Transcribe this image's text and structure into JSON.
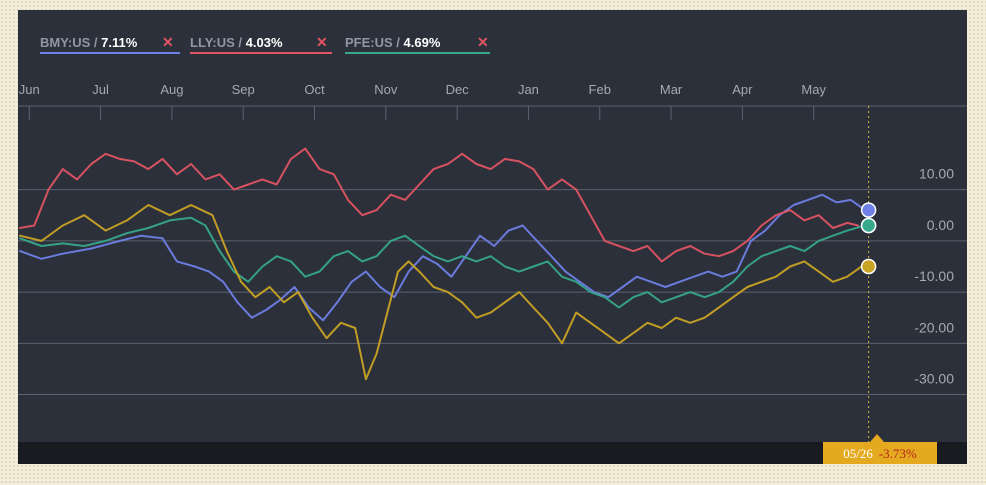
{
  "colors": {
    "background": "#2b303a",
    "grid": "#5b6170",
    "axis_text": "#a4a9b3",
    "cursor_line": "#d6b53a",
    "readout_bg": "#e5a91f",
    "readout_value": "#b3261e",
    "series_gold": "#c9a324"
  },
  "legend": [
    {
      "ticker": "BMY:US",
      "sep": " / ",
      "pct": "7.11%",
      "color": "#6f80e6",
      "close_icon": "close-x-icon"
    },
    {
      "ticker": "LLY:US",
      "sep": " / ",
      "pct": "4.03%",
      "color": "#e05462",
      "close_icon": "close-x-icon"
    },
    {
      "ticker": "PFE:US",
      "sep": " / ",
      "pct": "4.69%",
      "color": "#36a88b",
      "close_icon": "close-x-icon"
    }
  ],
  "readout": {
    "date": "05/26",
    "value": "-3.73%"
  },
  "chart_data": {
    "type": "line",
    "x_axis": {
      "position": "top",
      "labels": [
        "Jun",
        "Jul",
        "Aug",
        "Sep",
        "Oct",
        "Nov",
        "Dec",
        "Jan",
        "Feb",
        "Mar",
        "Apr",
        "May"
      ],
      "range": [
        0,
        12.2
      ],
      "cursor_x": 11.9
    },
    "y_axis": {
      "position": "right",
      "ticks": [
        10,
        0,
        -10,
        -20,
        -30
      ],
      "tick_labels": [
        "10.00",
        "0.00",
        "-10.00",
        "-20.00",
        "-30.00"
      ],
      "range": [
        -36,
        28
      ]
    },
    "grid": true,
    "legend_position": "top-left",
    "series": [
      {
        "name": "BMY:US",
        "color": "#6f80e6",
        "values": [
          [
            0,
            -2
          ],
          [
            0.3,
            -3.5
          ],
          [
            0.6,
            -2.5
          ],
          [
            1,
            -1.5
          ],
          [
            1.4,
            0
          ],
          [
            1.7,
            1
          ],
          [
            2,
            0.5
          ],
          [
            2.2,
            -4
          ],
          [
            2.45,
            -5
          ],
          [
            2.65,
            -6
          ],
          [
            2.85,
            -8
          ],
          [
            3.05,
            -12
          ],
          [
            3.25,
            -15
          ],
          [
            3.45,
            -13.5
          ],
          [
            3.65,
            -11.5
          ],
          [
            3.85,
            -9
          ],
          [
            4.05,
            -13
          ],
          [
            4.25,
            -15.5
          ],
          [
            4.45,
            -12
          ],
          [
            4.65,
            -8
          ],
          [
            4.85,
            -6
          ],
          [
            5.05,
            -9
          ],
          [
            5.25,
            -11
          ],
          [
            5.45,
            -6
          ],
          [
            5.65,
            -3
          ],
          [
            5.85,
            -4.5
          ],
          [
            6.05,
            -7
          ],
          [
            6.25,
            -3
          ],
          [
            6.45,
            1
          ],
          [
            6.65,
            -1
          ],
          [
            6.85,
            2
          ],
          [
            7.05,
            3
          ],
          [
            7.25,
            0
          ],
          [
            7.45,
            -3
          ],
          [
            7.65,
            -6
          ],
          [
            7.85,
            -8
          ],
          [
            8.05,
            -10
          ],
          [
            8.25,
            -11
          ],
          [
            8.45,
            -9
          ],
          [
            8.65,
            -7
          ],
          [
            8.85,
            -8
          ],
          [
            9.05,
            -9
          ],
          [
            9.25,
            -8
          ],
          [
            9.45,
            -7
          ],
          [
            9.65,
            -6
          ],
          [
            9.85,
            -7
          ],
          [
            10.05,
            -6
          ],
          [
            10.25,
            0
          ],
          [
            10.45,
            2
          ],
          [
            10.65,
            5
          ],
          [
            10.85,
            7
          ],
          [
            11.05,
            8
          ],
          [
            11.25,
            9
          ],
          [
            11.45,
            7.5
          ],
          [
            11.65,
            8
          ],
          [
            11.85,
            6
          ]
        ]
      },
      {
        "name": "LLY:US",
        "color": "#e05462",
        "values": [
          [
            0,
            2.5
          ],
          [
            0.2,
            3
          ],
          [
            0.4,
            10
          ],
          [
            0.6,
            14
          ],
          [
            0.8,
            12
          ],
          [
            1,
            15
          ],
          [
            1.2,
            17
          ],
          [
            1.4,
            16
          ],
          [
            1.6,
            15.5
          ],
          [
            1.8,
            14
          ],
          [
            2,
            16
          ],
          [
            2.2,
            13
          ],
          [
            2.4,
            15
          ],
          [
            2.6,
            12
          ],
          [
            2.8,
            13
          ],
          [
            3,
            10
          ],
          [
            3.2,
            11
          ],
          [
            3.4,
            12
          ],
          [
            3.6,
            11
          ],
          [
            3.8,
            16
          ],
          [
            4,
            18
          ],
          [
            4.2,
            14
          ],
          [
            4.4,
            13
          ],
          [
            4.6,
            8
          ],
          [
            4.8,
            5
          ],
          [
            5,
            6
          ],
          [
            5.2,
            9
          ],
          [
            5.4,
            8
          ],
          [
            5.6,
            11
          ],
          [
            5.8,
            14
          ],
          [
            6,
            15
          ],
          [
            6.2,
            17
          ],
          [
            6.4,
            15
          ],
          [
            6.6,
            14
          ],
          [
            6.8,
            16
          ],
          [
            7,
            15.5
          ],
          [
            7.2,
            14
          ],
          [
            7.4,
            10
          ],
          [
            7.6,
            12
          ],
          [
            7.8,
            10
          ],
          [
            8,
            5
          ],
          [
            8.2,
            0
          ],
          [
            8.4,
            -1
          ],
          [
            8.6,
            -2
          ],
          [
            8.8,
            -1
          ],
          [
            9,
            -4
          ],
          [
            9.2,
            -2
          ],
          [
            9.4,
            -1
          ],
          [
            9.6,
            -2.5
          ],
          [
            9.8,
            -3
          ],
          [
            10,
            -2
          ],
          [
            10.2,
            0
          ],
          [
            10.4,
            3
          ],
          [
            10.6,
            5
          ],
          [
            10.8,
            6
          ],
          [
            11,
            4
          ],
          [
            11.2,
            5
          ],
          [
            11.4,
            2.5
          ],
          [
            11.6,
            3.5
          ],
          [
            11.75,
            3
          ]
        ]
      },
      {
        "name": "PFE:US",
        "color": "#36a88b",
        "values": [
          [
            0,
            0.5
          ],
          [
            0.3,
            -1
          ],
          [
            0.6,
            -0.5
          ],
          [
            0.9,
            -1
          ],
          [
            1.2,
            0
          ],
          [
            1.5,
            1.5
          ],
          [
            1.8,
            2.5
          ],
          [
            2.1,
            4
          ],
          [
            2.4,
            4.5
          ],
          [
            2.6,
            3
          ],
          [
            2.8,
            -2
          ],
          [
            3,
            -6
          ],
          [
            3.2,
            -8
          ],
          [
            3.4,
            -5
          ],
          [
            3.6,
            -3
          ],
          [
            3.8,
            -4
          ],
          [
            4,
            -7
          ],
          [
            4.2,
            -6
          ],
          [
            4.4,
            -3
          ],
          [
            4.6,
            -2
          ],
          [
            4.8,
            -4
          ],
          [
            5,
            -3
          ],
          [
            5.2,
            0
          ],
          [
            5.4,
            1
          ],
          [
            5.6,
            -1
          ],
          [
            5.8,
            -3
          ],
          [
            6,
            -4
          ],
          [
            6.2,
            -3
          ],
          [
            6.4,
            -4
          ],
          [
            6.6,
            -3
          ],
          [
            6.8,
            -5
          ],
          [
            7,
            -6
          ],
          [
            7.2,
            -5
          ],
          [
            7.4,
            -4
          ],
          [
            7.6,
            -7
          ],
          [
            7.8,
            -8
          ],
          [
            8,
            -10
          ],
          [
            8.2,
            -11
          ],
          [
            8.4,
            -13
          ],
          [
            8.6,
            -11
          ],
          [
            8.8,
            -10
          ],
          [
            9,
            -12
          ],
          [
            9.2,
            -11
          ],
          [
            9.4,
            -10
          ],
          [
            9.6,
            -11
          ],
          [
            9.8,
            -10
          ],
          [
            10,
            -8
          ],
          [
            10.2,
            -5
          ],
          [
            10.4,
            -3
          ],
          [
            10.6,
            -2
          ],
          [
            10.8,
            -1
          ],
          [
            11,
            -2
          ],
          [
            11.2,
            0
          ],
          [
            11.4,
            1
          ],
          [
            11.6,
            2
          ],
          [
            11.85,
            3
          ]
        ]
      },
      {
        "color": "#c9a324",
        "values": [
          [
            0,
            1
          ],
          [
            0.3,
            0
          ],
          [
            0.6,
            3
          ],
          [
            0.9,
            5
          ],
          [
            1.2,
            2
          ],
          [
            1.5,
            4
          ],
          [
            1.8,
            7
          ],
          [
            2.1,
            5
          ],
          [
            2.4,
            7
          ],
          [
            2.7,
            5
          ],
          [
            2.9,
            -2
          ],
          [
            3.1,
            -8
          ],
          [
            3.3,
            -11
          ],
          [
            3.5,
            -9
          ],
          [
            3.7,
            -12
          ],
          [
            3.9,
            -10
          ],
          [
            4.1,
            -15
          ],
          [
            4.3,
            -19
          ],
          [
            4.5,
            -16
          ],
          [
            4.7,
            -17
          ],
          [
            4.85,
            -27
          ],
          [
            5,
            -22
          ],
          [
            5.15,
            -14
          ],
          [
            5.3,
            -6
          ],
          [
            5.45,
            -4
          ],
          [
            5.6,
            -6
          ],
          [
            5.8,
            -9
          ],
          [
            6,
            -10
          ],
          [
            6.2,
            -12
          ],
          [
            6.4,
            -15
          ],
          [
            6.6,
            -14
          ],
          [
            6.8,
            -12
          ],
          [
            7,
            -10
          ],
          [
            7.2,
            -13
          ],
          [
            7.4,
            -16
          ],
          [
            7.6,
            -20
          ],
          [
            7.8,
            -14
          ],
          [
            8,
            -16
          ],
          [
            8.2,
            -18
          ],
          [
            8.4,
            -20
          ],
          [
            8.6,
            -18
          ],
          [
            8.8,
            -16
          ],
          [
            9,
            -17
          ],
          [
            9.2,
            -15
          ],
          [
            9.4,
            -16
          ],
          [
            9.6,
            -15
          ],
          [
            9.8,
            -13
          ],
          [
            10,
            -11
          ],
          [
            10.2,
            -9
          ],
          [
            10.4,
            -8
          ],
          [
            10.6,
            -7
          ],
          [
            10.8,
            -5
          ],
          [
            11,
            -4
          ],
          [
            11.2,
            -6
          ],
          [
            11.4,
            -8
          ],
          [
            11.6,
            -7
          ],
          [
            11.8,
            -5
          ]
        ]
      }
    ]
  }
}
